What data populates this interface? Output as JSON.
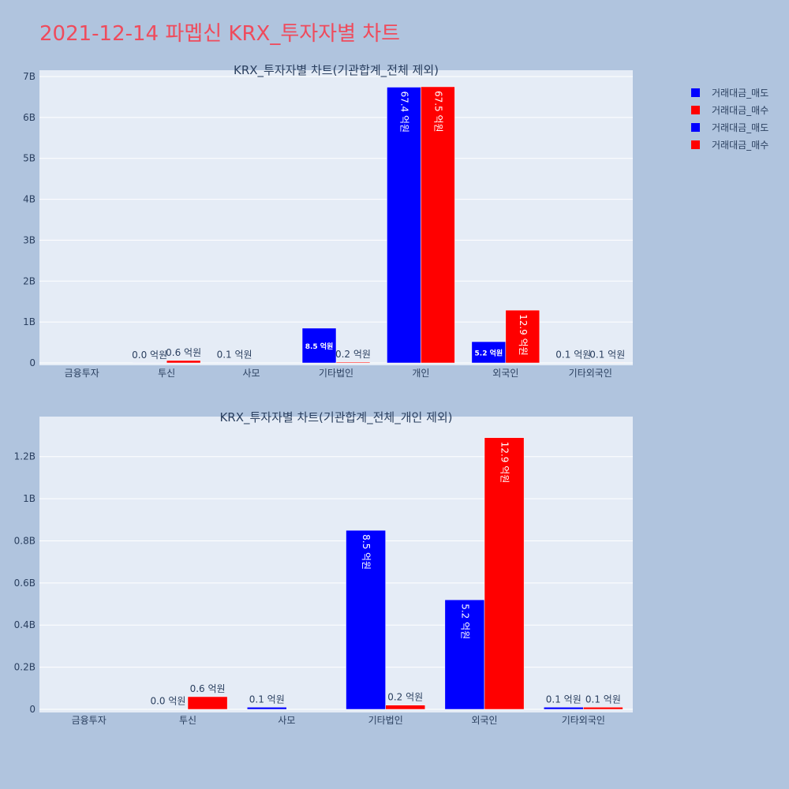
{
  "title": "2021-12-14 파멥신 KRX_투자자별 차트",
  "colors": {
    "background": "#b0c4de",
    "plot_bg": "#e5ecf6",
    "sell": "#0000ff",
    "buy": "#ff0000",
    "title": "#ef4b5c",
    "text": "#2a3f5f"
  },
  "legend": [
    {
      "label": "거래대금_매도",
      "color": "#0000ff"
    },
    {
      "label": "거래대금_매수",
      "color": "#ff0000"
    },
    {
      "label": "거래대금_매도",
      "color": "#0000ff"
    },
    {
      "label": "거래대금_매수",
      "color": "#ff0000"
    }
  ],
  "chart_data": [
    {
      "type": "bar",
      "title": "KRX_투자자별 차트(기관합계_전체 제외)",
      "categories": [
        "금융투자",
        "투신",
        "사모",
        "기타법인",
        "개인",
        "외국인",
        "기타외국인"
      ],
      "ylim": [
        0,
        7000000000
      ],
      "yticks": [
        0,
        1000000000,
        2000000000,
        3000000000,
        4000000000,
        5000000000,
        6000000000,
        7000000000
      ],
      "ytick_labels": [
        "0",
        "1B",
        "2B",
        "3B",
        "4B",
        "5B",
        "6B",
        "7B"
      ],
      "grid": true,
      "series": [
        {
          "name": "거래대금_매도",
          "color": "#0000ff",
          "values": [
            0,
            1000000,
            10000000,
            850000000,
            6740000000,
            520000000,
            10000000
          ],
          "labels": [
            "",
            "0.0 억원",
            "0.1 억원",
            "8.5 억원",
            "67.4 억원",
            "5.2 억원",
            "0.1 억원"
          ]
        },
        {
          "name": "거래대금_매수",
          "color": "#ff0000",
          "values": [
            0,
            60000000,
            0,
            20000000,
            6750000000,
            1290000000,
            10000000
          ],
          "labels": [
            "",
            "0.6 억원",
            "",
            "0.2 억원",
            "67.5 억원",
            "12.9 억원",
            "0.1 억원"
          ]
        }
      ]
    },
    {
      "type": "bar",
      "title": "KRX_투자자별 차트(기관합계_전체_개인 제외)",
      "categories": [
        "금융투자",
        "투신",
        "사모",
        "기타법인",
        "외국인",
        "기타외국인"
      ],
      "ylim": [
        0,
        1360000000
      ],
      "yticks": [
        0,
        200000000,
        400000000,
        600000000,
        800000000,
        1000000000,
        1200000000
      ],
      "ytick_labels": [
        "0",
        "0.2B",
        "0.4B",
        "0.6B",
        "0.8B",
        "1B",
        "1.2B"
      ],
      "grid": true,
      "series": [
        {
          "name": "거래대금_매도",
          "color": "#0000ff",
          "values": [
            0,
            1000000,
            10000000,
            850000000,
            520000000,
            10000000
          ],
          "labels": [
            "",
            "0.0 억원",
            "0.1 억원",
            "8.5 억원",
            "5.2 억원",
            "0.1 억원"
          ]
        },
        {
          "name": "거래대금_매수",
          "color": "#ff0000",
          "values": [
            0,
            60000000,
            0,
            20000000,
            1290000000,
            10000000
          ],
          "labels": [
            "",
            "0.6 억원",
            "",
            "0.2 억원",
            "12.9 억원",
            "0.1 억원"
          ]
        }
      ]
    }
  ]
}
